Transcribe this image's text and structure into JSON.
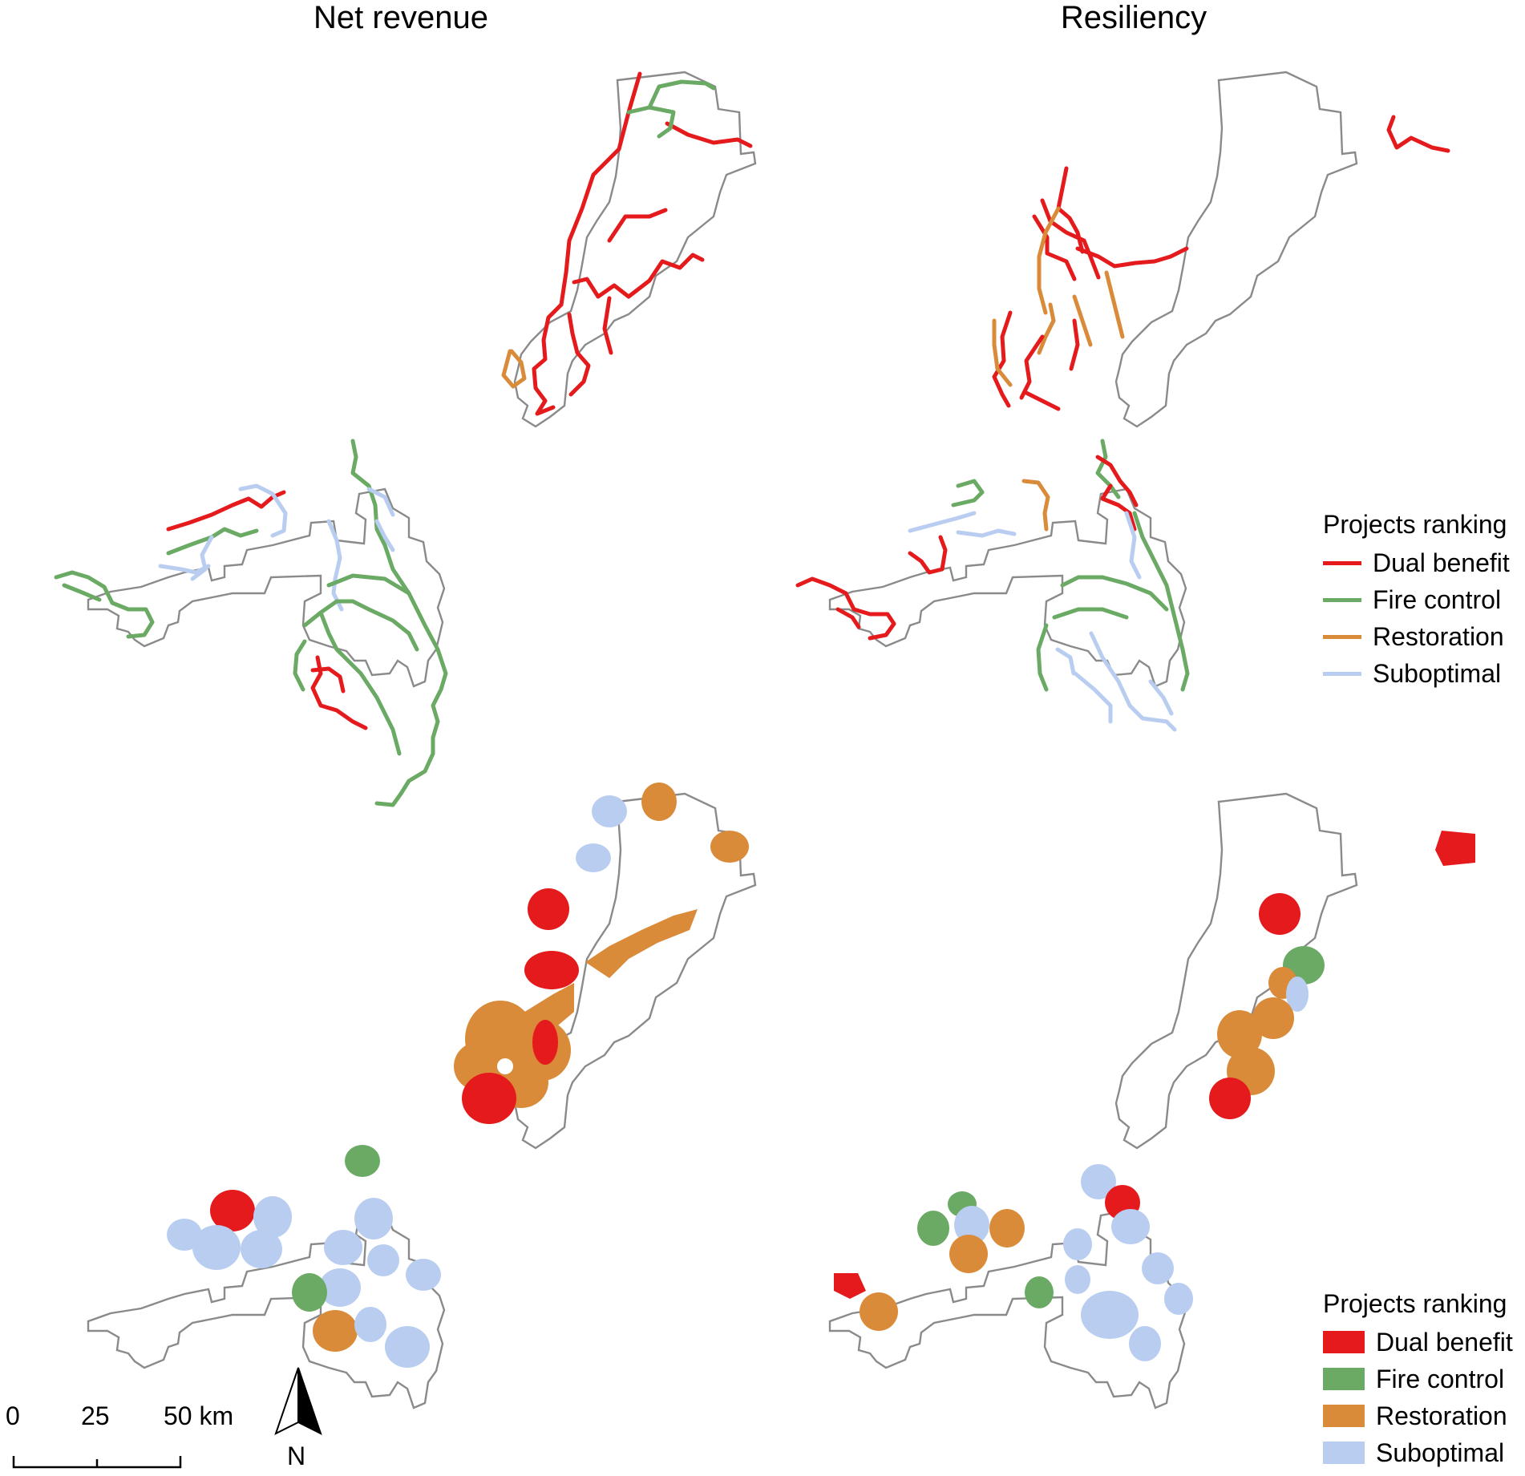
{
  "panels": {
    "left_title": "Net revenue",
    "right_title": "Resiliency"
  },
  "legend_lines": {
    "title": "Projects ranking",
    "items": [
      {
        "label": "Dual benefit",
        "color": "#e41a1c"
      },
      {
        "label": "Fire control",
        "color": "#6aaa64"
      },
      {
        "label": "Restoration",
        "color": "#d98b3a"
      },
      {
        "label": "Suboptimal",
        "color": "#b8cdf0"
      }
    ]
  },
  "legend_areas": {
    "title": "Projects ranking",
    "items": [
      {
        "label": "Dual benefit",
        "color": "#e41a1c"
      },
      {
        "label": "Fire control",
        "color": "#6aaa64"
      },
      {
        "label": "Restoration",
        "color": "#d98b3a"
      },
      {
        "label": "Suboptimal",
        "color": "#b8cdf0"
      }
    ]
  },
  "scale_bar": {
    "labels": [
      "0",
      "25",
      "50 km"
    ]
  },
  "north_arrow": {
    "label": "N"
  },
  "boundary_color": "#8a8a8a"
}
